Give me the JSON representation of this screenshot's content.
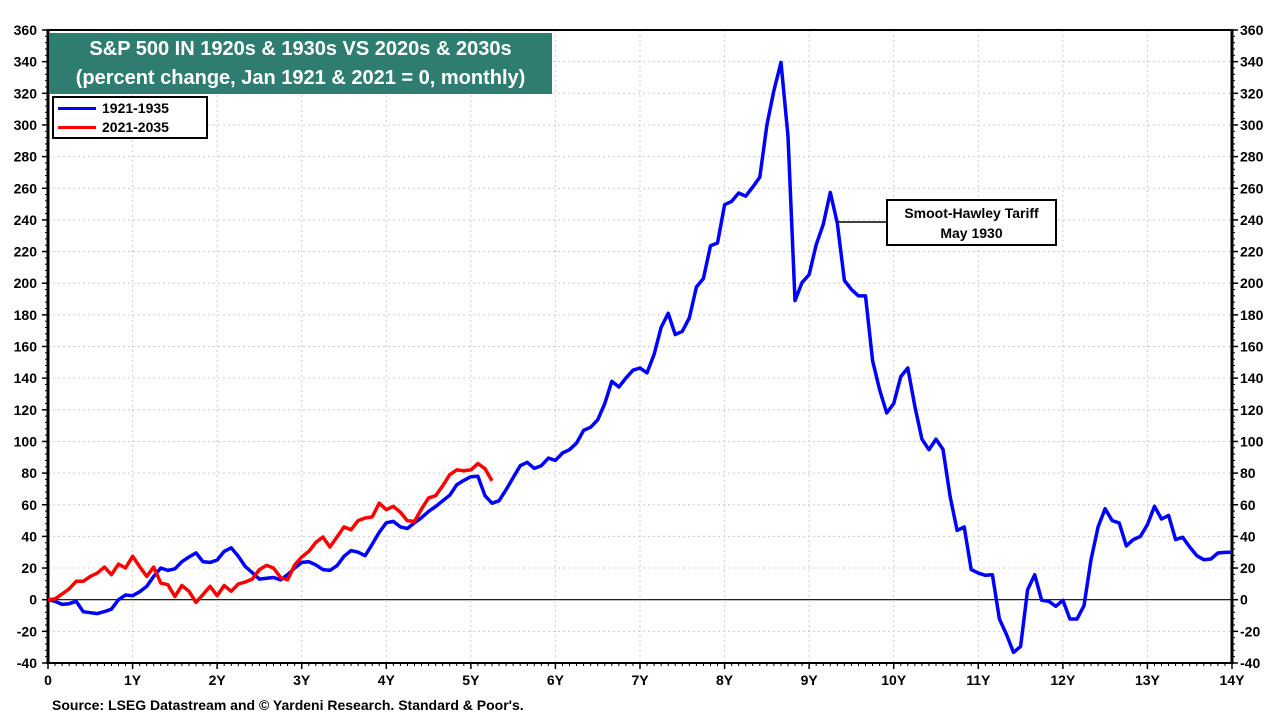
{
  "chart_data": {
    "type": "line",
    "title": "S&P 500 IN 1920s & 1930s VS 2020s & 2030s",
    "subtitle": "(percent change, Jan 1921 & 2021 = 0, monthly)",
    "frequency": "monthly",
    "xlim": [
      0,
      14
    ],
    "ylim": [
      -40,
      360
    ],
    "x_tick_labels": [
      "0",
      "1Y",
      "2Y",
      "3Y",
      "4Y",
      "5Y",
      "6Y",
      "7Y",
      "8Y",
      "9Y",
      "10Y",
      "11Y",
      "12Y",
      "13Y",
      "14Y"
    ],
    "y_ticks": [
      -40,
      -20,
      0,
      20,
      40,
      60,
      80,
      100,
      120,
      140,
      160,
      180,
      200,
      220,
      240,
      260,
      280,
      300,
      320,
      340,
      360
    ],
    "grid": true,
    "dual_y_axis": true,
    "legend_position": "top-left",
    "series": [
      {
        "name": "1921-1935",
        "color": "#0000ff",
        "values": [
          0,
          -1,
          -3,
          -2.5,
          -1,
          -7.6,
          -8.2,
          -8.8,
          -7.5,
          -6,
          0,
          3,
          2.5,
          5,
          8.4,
          14.7,
          20,
          18.5,
          19.5,
          24,
          27,
          29.6,
          24,
          23.6,
          25,
          30.5,
          32.8,
          27.4,
          21,
          17,
          13,
          13.5,
          14,
          12.6,
          15.8,
          20,
          23.6,
          24,
          22,
          19,
          18.5,
          21.5,
          27.4,
          31,
          30,
          27.8,
          35,
          42.5,
          48.6,
          49.5,
          46,
          45,
          48.6,
          51.8,
          55.8,
          58.8,
          62.5,
          66,
          72.7,
          75.4,
          77.7,
          78,
          65.7,
          61,
          62.5,
          69.5,
          77,
          84.7,
          86.8,
          83,
          84.7,
          89.5,
          88,
          92.7,
          94.8,
          99,
          107,
          109,
          113.7,
          124,
          138,
          134.4,
          140,
          145,
          146.4,
          143.3,
          155,
          172,
          181,
          167.5,
          169.6,
          178,
          197.6,
          203,
          223.7,
          225.4,
          249.6,
          251.7,
          257,
          255,
          260.8,
          267,
          300,
          321.8,
          339.5,
          292.8,
          189,
          200.5,
          205.4,
          224.3,
          237,
          257.4,
          238,
          201.8,
          196,
          192,
          192,
          151,
          132.7,
          118,
          123.9,
          141,
          146.4,
          122,
          101.5,
          94.8,
          101.5,
          95,
          65.3,
          43.8,
          46,
          19,
          16.8,
          15.4,
          15.8,
          -12.2,
          -22,
          -33.3,
          -29.5,
          6.3,
          15.8,
          -0.4,
          -1,
          -4.2,
          -0.4,
          -12.2,
          -12.2,
          -3.8,
          25.3,
          46,
          57.5,
          50,
          48.5,
          34,
          38,
          40,
          47.4,
          59,
          51,
          53.3,
          38,
          39.4,
          33.3,
          27.8,
          25.3,
          25.7,
          29.5,
          29.9,
          30
        ]
      },
      {
        "name": "2021-2035",
        "color": "#ff0000",
        "values": [
          0,
          0.5,
          3.6,
          6.8,
          11.6,
          11.6,
          14.7,
          16.8,
          20.6,
          15.8,
          22.5,
          20,
          27.4,
          21,
          14.7,
          20.6,
          10.5,
          9.5,
          2,
          9,
          5.3,
          -1.7,
          3.2,
          8.4,
          2.5,
          9,
          5.3,
          9.9,
          11.2,
          13.1,
          19,
          21.7,
          20,
          14,
          12.6,
          22,
          27,
          30.5,
          36.2,
          39.6,
          33.3,
          39.6,
          46,
          44.2,
          50,
          51.6,
          52.3,
          61,
          56.9,
          59,
          55.2,
          49.9,
          49.5,
          57.3,
          64.3,
          65.7,
          72,
          79,
          82,
          81.5,
          82,
          86,
          82.8,
          75.2
        ]
      }
    ],
    "annotation": {
      "line1": "Smoot-Hawley Tariff",
      "line2": "May 1930",
      "points_to_month": 112
    }
  },
  "title_box_color": "#2f7d70",
  "source": "Source: LSEG Datastream and © Yardeni Research. Standard & Poor's."
}
